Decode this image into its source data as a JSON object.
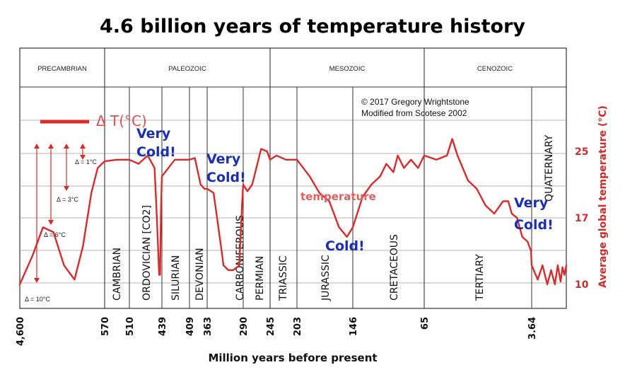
{
  "chart_data": {
    "type": "line",
    "title": "4.6 billion years of temperature history",
    "xlabel": "Million years before present",
    "ylabel": "Average global temperature (°C)",
    "x_ticks": [
      "4,600",
      "570",
      "510",
      "439",
      "409",
      "363",
      "290",
      "245",
      "203",
      "146",
      "65",
      "3.64"
    ],
    "y_ticks": [
      25,
      17,
      10
    ],
    "eras": [
      "PRECAMBRIAN",
      "PALEOZOIC",
      "MESOZOIC",
      "CENOZOIC"
    ],
    "periods": [
      "CAMBRIAN",
      "ORDOVICIAN [CO2]",
      "SILURIAN",
      "DEVONIAN",
      "CARBONIFEROUS",
      "PERMIAN",
      "TRIASSIC",
      "JURASSIC",
      "CRETACEOUS",
      "TERTIARY",
      "QUATERNARY"
    ],
    "legend": "Δ T(°C)",
    "credit": [
      "© 2017 Gregory Wrightstone",
      "Modified from Scotese 2002"
    ],
    "series_label": "temperature",
    "delta_labels": [
      "Δ = 1°C",
      "Δ = 3°C",
      "Δ = 6°C",
      "Δ = 10°C"
    ],
    "annotations": {
      "very_cold_1": [
        "Very",
        "Cold!"
      ],
      "very_cold_2": [
        "Very",
        "Cold!"
      ],
      "very_cold_3": [
        "Very",
        "Cold!"
      ],
      "cold": "Cold!"
    },
    "series": [
      {
        "name": "temperature",
        "points": [
          [
            4600,
            10
          ],
          [
            4000,
            13
          ],
          [
            3500,
            16
          ],
          [
            3000,
            15.5
          ],
          [
            2500,
            12
          ],
          [
            2000,
            10.5
          ],
          [
            1600,
            14
          ],
          [
            1200,
            20
          ],
          [
            900,
            23
          ],
          [
            700,
            23.5
          ],
          [
            570,
            23.8
          ],
          [
            540,
            24
          ],
          [
            510,
            24
          ],
          [
            490,
            23.5
          ],
          [
            470,
            24.5
          ],
          [
            455,
            23
          ],
          [
            450,
            17
          ],
          [
            445,
            11
          ],
          [
            443,
            11
          ],
          [
            441,
            18
          ],
          [
            439,
            22
          ],
          [
            425,
            24
          ],
          [
            409,
            24
          ],
          [
            395,
            24.2
          ],
          [
            380,
            21
          ],
          [
            370,
            20.5
          ],
          [
            363,
            20.5
          ],
          [
            350,
            20
          ],
          [
            335,
            14
          ],
          [
            330,
            12
          ],
          [
            320,
            11.5
          ],
          [
            310,
            11.5
          ],
          [
            298,
            12
          ],
          [
            292,
            19
          ],
          [
            290,
            21
          ],
          [
            283,
            20.2
          ],
          [
            275,
            21
          ],
          [
            260,
            25.3
          ],
          [
            250,
            25
          ],
          [
            245,
            24
          ],
          [
            235,
            24.5
          ],
          [
            220,
            24
          ],
          [
            203,
            24
          ],
          [
            190,
            22
          ],
          [
            180,
            20
          ],
          [
            170,
            19
          ],
          [
            160,
            16
          ],
          [
            152,
            15
          ],
          [
            146,
            16
          ],
          [
            135,
            19.5
          ],
          [
            125,
            21
          ],
          [
            115,
            22
          ],
          [
            108,
            23.5
          ],
          [
            100,
            22.5
          ],
          [
            95,
            24.5
          ],
          [
            88,
            23
          ],
          [
            80,
            24
          ],
          [
            72,
            23
          ],
          [
            65,
            24.5
          ],
          [
            58,
            24
          ],
          [
            52,
            24.5
          ],
          [
            49,
            26.5
          ],
          [
            46,
            24.5
          ],
          [
            40,
            21.5
          ],
          [
            35,
            20.5
          ],
          [
            30,
            18.5
          ],
          [
            25,
            17.5
          ],
          [
            20,
            19
          ],
          [
            17,
            19
          ],
          [
            15,
            17.5
          ],
          [
            12,
            17
          ],
          [
            9,
            15
          ],
          [
            6,
            14.5
          ],
          [
            4,
            13.5
          ],
          [
            3.64,
            12
          ],
          [
            3,
            10.5
          ],
          [
            2.5,
            12
          ],
          [
            2,
            10
          ],
          [
            1.6,
            11.5
          ],
          [
            1.2,
            10
          ],
          [
            0.9,
            12
          ],
          [
            0.6,
            10.3
          ],
          [
            0.4,
            11.8
          ],
          [
            0.2,
            11
          ],
          [
            0,
            12
          ]
        ]
      }
    ],
    "colors": {
      "temperature": "#dc2a2a",
      "annotation": "#1a2eb8",
      "grid": "#333333"
    },
    "grid": true
  }
}
